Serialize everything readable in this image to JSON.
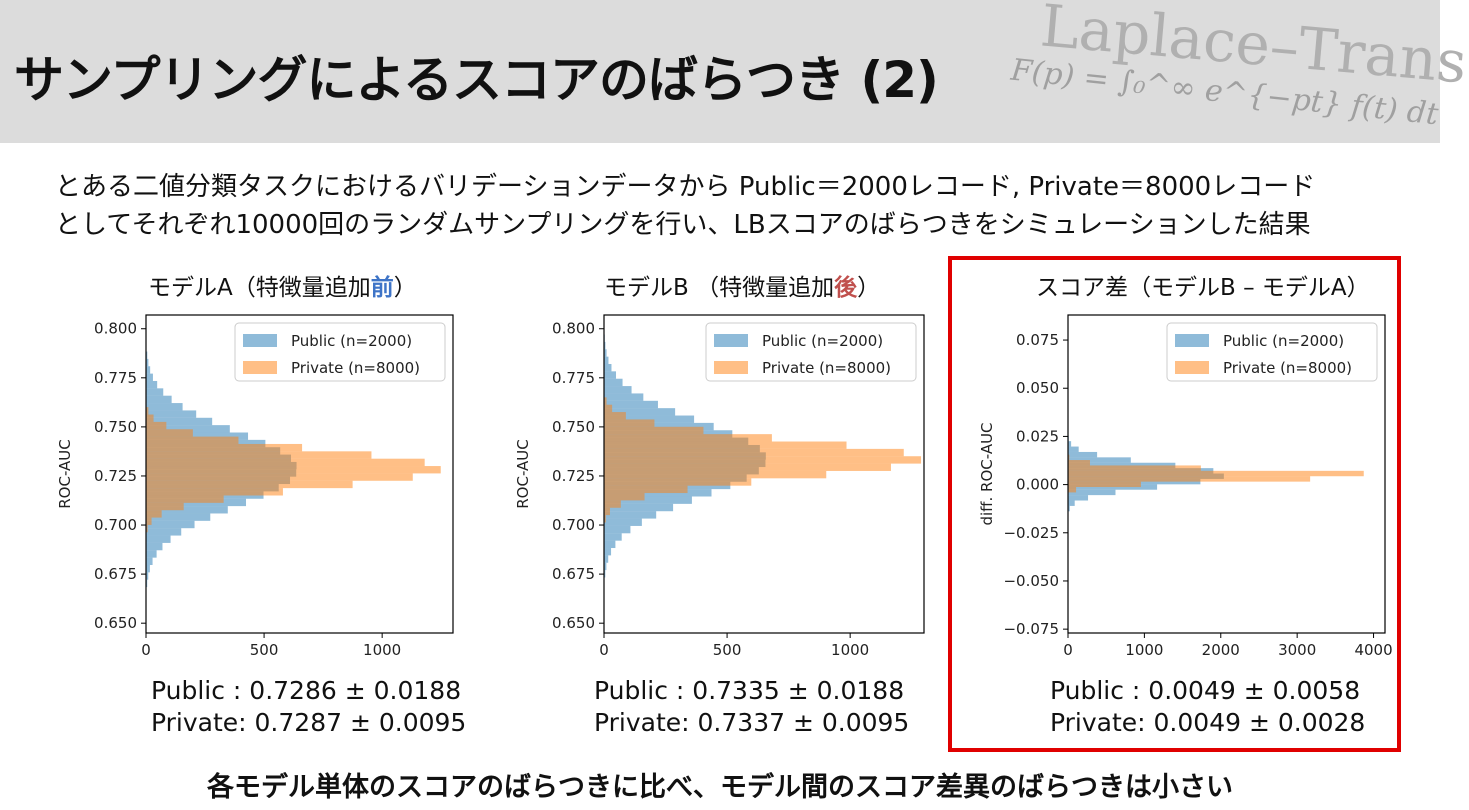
{
  "slide": {
    "title": "サンプリングによるスコアのばらつき (2)",
    "header_bg": {
      "line1": "Laplace–Trans",
      "formula": "F(p) = ∫₀^∞ e^{−pt} f(t) dt"
    },
    "description": [
      "とある二値分類タスクにおけるバリデーションデータから  Public＝2000レコード, Private＝8000レコード",
      "としてそれぞれ10000回のランダムサンプリングを行い、LBスコアのばらつきをシミュレーションした結果"
    ],
    "conclusion": "各モデル単体のスコアのばらつきに比べ、モデル間のスコア差異のばらつきは小さい"
  },
  "panels": [
    {
      "title_pre": "モデルA（特徴量追加",
      "title_hl": "前",
      "title_post": "）",
      "stats": [
        "Public : 0.7286 ± 0.0188",
        "Private: 0.7287 ± 0.0095"
      ]
    },
    {
      "title_pre": "モデルB （特徴量追加",
      "title_hl": "後",
      "title_post": "）",
      "stats": [
        "Public : 0.7335 ± 0.0188",
        "Private: 0.7337 ± 0.0095"
      ]
    },
    {
      "title_pre": "スコア差（モデルB – モデルA）",
      "title_hl": "",
      "title_post": "",
      "stats": [
        "Public : 0.0049 ± 0.0058",
        "Private: 0.0049 ± 0.0028"
      ]
    }
  ],
  "colors": {
    "public": "#1f77b4",
    "private": "#ff7f0e",
    "highlight_box": "#e00000",
    "highlight_blue": "#3e74c7",
    "highlight_red": "#c0504d"
  },
  "chart_data": [
    {
      "type": "bar",
      "orientation": "horizontal-histogram",
      "ylabel": "ROC-AUC",
      "xlabel": "",
      "xlim": [
        0,
        1300
      ],
      "ylim": [
        0.645,
        0.807
      ],
      "xticks": [
        0,
        500,
        1000
      ],
      "yticks": [
        0.65,
        0.675,
        0.7,
        0.725,
        0.75,
        0.775,
        0.8
      ],
      "ytick_labels": [
        "0.650",
        "0.675",
        "0.700",
        "0.725",
        "0.750",
        "0.775",
        "0.800"
      ],
      "legend": "top-right",
      "series": [
        {
          "name": "Public (n=2000)",
          "mean": 0.7286,
          "std": 0.0188,
          "peak": 640,
          "bin": 0.00375
        },
        {
          "name": "Private (n=8000)",
          "mean": 0.7287,
          "std": 0.0095,
          "peak": 1250,
          "bin": 0.00375
        }
      ]
    },
    {
      "type": "bar",
      "orientation": "horizontal-histogram",
      "ylabel": "ROC-AUC",
      "xlabel": "",
      "xlim": [
        0,
        1300
      ],
      "ylim": [
        0.645,
        0.807
      ],
      "xticks": [
        0,
        500,
        1000
      ],
      "yticks": [
        0.65,
        0.675,
        0.7,
        0.725,
        0.75,
        0.775,
        0.8
      ],
      "ytick_labels": [
        "0.650",
        "0.675",
        "0.700",
        "0.725",
        "0.750",
        "0.775",
        "0.800"
      ],
      "legend": "top-right",
      "series": [
        {
          "name": "Public (n=2000)",
          "mean": 0.7335,
          "std": 0.0188,
          "peak": 660,
          "bin": 0.00375
        },
        {
          "name": "Private (n=8000)",
          "mean": 0.7337,
          "std": 0.0095,
          "peak": 1290,
          "bin": 0.00375
        }
      ]
    },
    {
      "type": "bar",
      "orientation": "horizontal-histogram",
      "ylabel": "diff. ROC-AUC",
      "xlabel": "",
      "xlim": [
        0,
        4150
      ],
      "ylim": [
        -0.077,
        0.088
      ],
      "xticks": [
        0,
        1000,
        2000,
        3000,
        4000
      ],
      "yticks": [
        -0.075,
        -0.05,
        -0.025,
        0.0,
        0.025,
        0.05,
        0.075
      ],
      "ytick_labels": [
        "−0.075",
        "−0.050",
        "−0.025",
        "0.000",
        "0.025",
        "0.050",
        "0.075"
      ],
      "legend": "top-right",
      "series": [
        {
          "name": "Public (n=2000)",
          "mean": 0.0049,
          "std": 0.0058,
          "peak": 2050,
          "bin": 0.0028
        },
        {
          "name": "Private (n=8000)",
          "mean": 0.0049,
          "std": 0.0028,
          "peak": 4050,
          "bin": 0.0028
        }
      ]
    }
  ]
}
